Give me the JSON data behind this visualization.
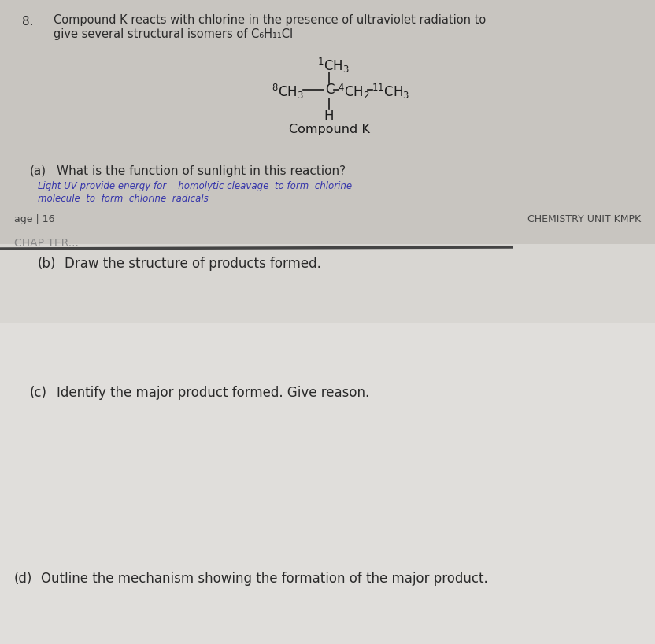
{
  "bg_top": "#c8c5c0",
  "bg_bottom": "#d8d6d2",
  "bg_lower": "#e0dedb",
  "question_number": "8.",
  "q_line1": "Compound K reacts with chlorine in the presence of ultraviolet radiation to",
  "q_line2": "give several structural isomers of C₆H₁₁Cl",
  "compound_label": "Compound K",
  "part_a_label": "(a)",
  "part_a_text": "What is the function of sunlight in this reaction?",
  "part_a_answer_line1": "Light UV provide energy for    homolytic cleavage  to form  chlorine",
  "part_a_answer_line2": "molecule  to  form  chlorine  radicals",
  "page_footer_left": "age | 16",
  "page_footer_right": "CHEMISTRY UNIT KMPK",
  "chapter_label": "CHAP TER...",
  "part_b_label": "(b)",
  "part_b_text": "Draw the structure of products formed.",
  "part_c_label": "(c)",
  "part_c_text": "Identify the major product formed. Give reason.",
  "part_d_label": "(d)",
  "part_d_text": "Outline the mechanism showing the formation of the major product.",
  "text_color": "#2a2a2a",
  "answer_color": "#3535aa",
  "footer_color": "#444444",
  "struct_color": "#1a1a1a"
}
